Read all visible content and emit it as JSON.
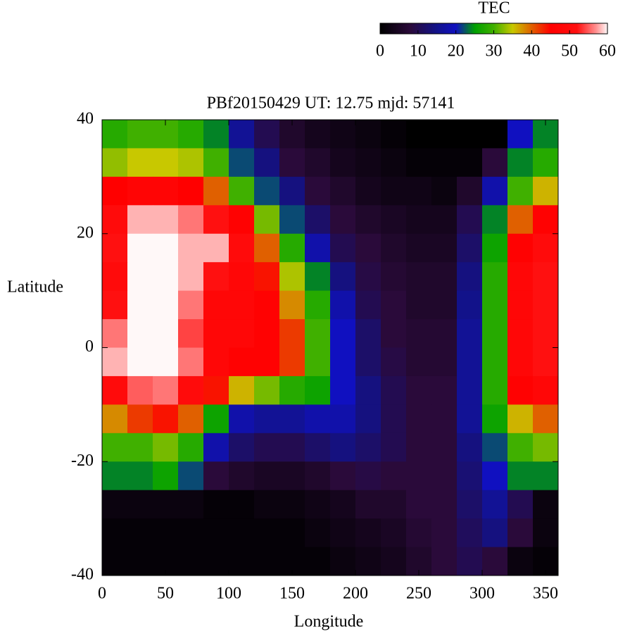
{
  "chart_data": {
    "type": "heatmap",
    "title": "PBf20150429  UT: 12.75  mjd: 57141",
    "xlabel": "Longitude",
    "ylabel": "Latitude",
    "colorbar_label": "TEC",
    "x": [
      10,
      30,
      50,
      70,
      90,
      110,
      130,
      150,
      170,
      190,
      210,
      230,
      250,
      270,
      290,
      310,
      330,
      350
    ],
    "y": [
      37.5,
      32.5,
      27.5,
      22.5,
      17.5,
      12.5,
      7.5,
      2.5,
      -2.5,
      -7.5,
      -12.5,
      -17.5,
      -22.5,
      -27.5,
      -32.5,
      -37.5
    ],
    "z": [
      [
        28,
        30,
        30,
        28,
        24,
        16,
        10,
        6,
        4,
        3,
        2,
        1,
        0,
        0,
        0,
        0,
        20,
        24
      ],
      [
        33,
        35,
        35,
        34,
        30,
        22,
        14,
        8,
        6,
        4,
        3,
        2,
        1,
        1,
        1,
        8,
        24,
        28
      ],
      [
        45,
        47,
        47,
        45,
        40,
        30,
        22,
        14,
        8,
        6,
        4,
        3,
        3,
        2,
        6,
        18,
        30,
        36
      ],
      [
        50,
        58,
        58,
        56,
        52,
        46,
        32,
        22,
        12,
        8,
        6,
        5,
        4,
        4,
        10,
        24,
        40,
        46
      ],
      [
        52,
        60,
        60,
        58,
        58,
        50,
        40,
        28,
        18,
        10,
        8,
        6,
        5,
        5,
        12,
        26,
        46,
        50
      ],
      [
        50,
        60,
        60,
        58,
        52,
        48,
        44,
        34,
        24,
        14,
        9,
        7,
        6,
        6,
        14,
        28,
        48,
        52
      ],
      [
        52,
        60,
        60,
        56,
        48,
        48,
        46,
        38,
        28,
        18,
        10,
        8,
        6,
        6,
        15,
        28,
        48,
        52
      ],
      [
        56,
        60,
        60,
        54,
        48,
        48,
        46,
        42,
        30,
        20,
        12,
        8,
        7,
        7,
        16,
        28,
        48,
        52
      ],
      [
        58,
        60,
        60,
        56,
        48,
        46,
        46,
        42,
        30,
        20,
        12,
        9,
        7,
        7,
        16,
        28,
        48,
        52
      ],
      [
        50,
        55,
        56,
        50,
        44,
        36,
        32,
        28,
        26,
        20,
        14,
        10,
        8,
        8,
        16,
        28,
        46,
        48
      ],
      [
        38,
        42,
        44,
        40,
        26,
        18,
        16,
        16,
        18,
        18,
        14,
        10,
        8,
        8,
        16,
        26,
        36,
        40
      ],
      [
        30,
        30,
        32,
        28,
        18,
        12,
        10,
        10,
        12,
        14,
        12,
        10,
        8,
        8,
        14,
        22,
        30,
        32
      ],
      [
        24,
        24,
        26,
        22,
        8,
        6,
        5,
        5,
        6,
        8,
        9,
        8,
        8,
        8,
        13,
        20,
        24,
        24
      ],
      [
        2,
        2,
        2,
        2,
        1,
        1,
        2,
        2,
        3,
        4,
        6,
        6,
        8,
        8,
        12,
        16,
        10,
        2
      ],
      [
        1,
        1,
        1,
        1,
        1,
        1,
        1,
        1,
        2,
        3,
        4,
        5,
        7,
        8,
        11,
        14,
        8,
        2
      ],
      [
        1,
        1,
        1,
        1,
        1,
        1,
        1,
        1,
        1,
        2,
        3,
        4,
        6,
        8,
        10,
        8,
        2,
        1
      ]
    ],
    "xlim": [
      0,
      360
    ],
    "xticks": [
      0,
      50,
      100,
      150,
      200,
      250,
      300,
      350
    ],
    "ylim": [
      -40,
      40
    ],
    "yticks": [
      -40,
      -20,
      0,
      20,
      40
    ],
    "clim": [
      0,
      60
    ],
    "cticks": [
      0,
      10,
      20,
      30,
      40,
      50,
      60
    ],
    "colorscale": [
      {
        "value": 0,
        "color": "#000000"
      },
      {
        "value": 8,
        "color": "#2a0a3a"
      },
      {
        "value": 15,
        "color": "#12128a"
      },
      {
        "value": 20,
        "color": "#1010c0"
      },
      {
        "value": 25,
        "color": "#00a000"
      },
      {
        "value": 30,
        "color": "#40b000"
      },
      {
        "value": 35,
        "color": "#c8c800"
      },
      {
        "value": 40,
        "color": "#e06000"
      },
      {
        "value": 45,
        "color": "#ff0000"
      },
      {
        "value": 52,
        "color": "#ff1010"
      },
      {
        "value": 57,
        "color": "#ff9090"
      },
      {
        "value": 60,
        "color": "#fff8f8"
      }
    ]
  }
}
